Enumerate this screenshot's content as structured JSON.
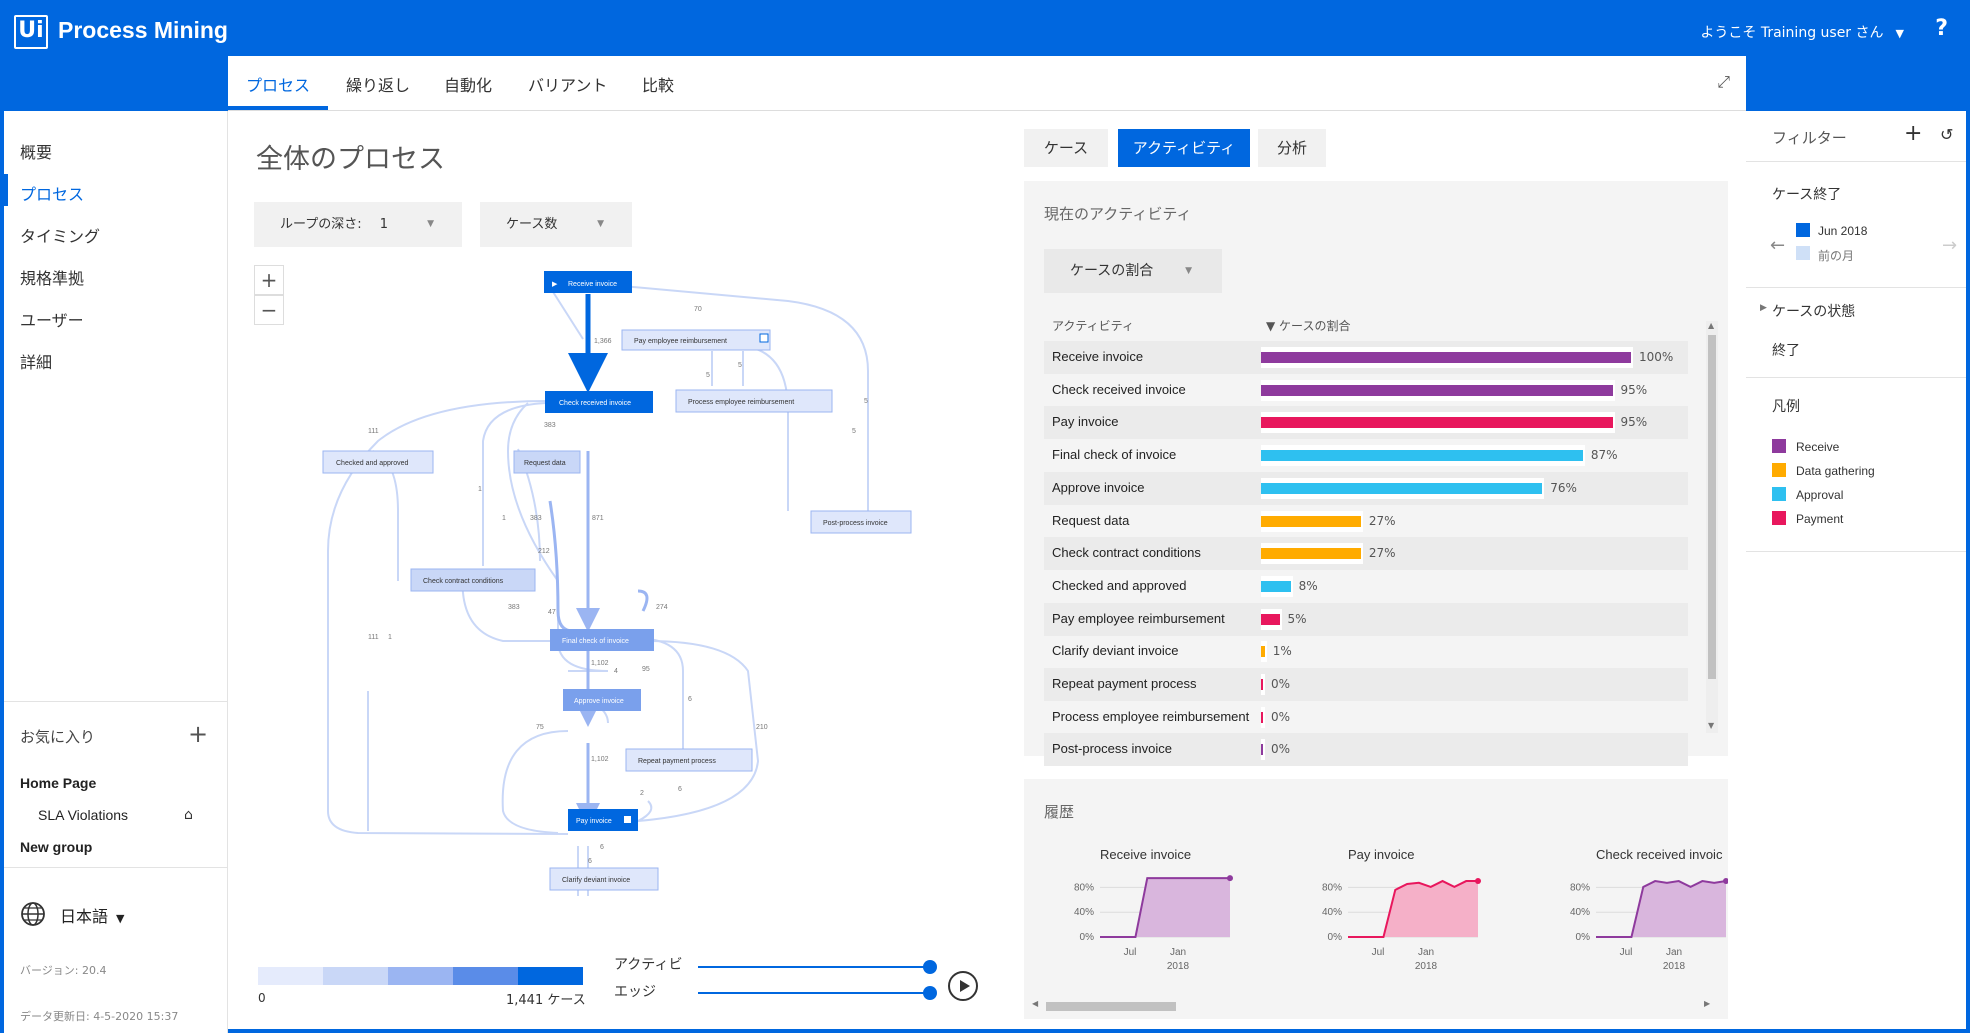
{
  "app": {
    "logo_text": "Ui",
    "title": "Process Mining",
    "welcome": "ようこそ Training user さん",
    "help": "?"
  },
  "sidebar": {
    "items": [
      {
        "label": "概要"
      },
      {
        "label": "プロセス"
      },
      {
        "label": "タイミング"
      },
      {
        "label": "規格準拠"
      },
      {
        "label": "ユーザー"
      },
      {
        "label": "詳細"
      }
    ],
    "favorites_label": "お気に入り",
    "favorites": [
      {
        "label": "Home Page"
      },
      {
        "label": "SLA Violations"
      },
      {
        "label": "New group"
      }
    ],
    "language": "日本語",
    "version": "バージョン: 20.4",
    "data_updated": "データ更新日: 4-5-2020 15:37"
  },
  "tabs": [
    {
      "label": "プロセス"
    },
    {
      "label": "繰り返し"
    },
    {
      "label": "自動化"
    },
    {
      "label": "バリアント"
    },
    {
      "label": "比較"
    }
  ],
  "process": {
    "title": "全体のプロセス",
    "loop_depth_label": "ループの深さ:",
    "loop_depth_value": "1",
    "metric_select": "ケース数",
    "zoom_in": "+",
    "zoom_out": "−",
    "nodes": {
      "receive": "Receive invoice",
      "pay_emp": "Pay employee reimbursement",
      "check_recv": "Check received invoice",
      "proc_emp": "Process employee reimbursement",
      "checked_appr": "Checked and approved",
      "request": "Request data",
      "post": "Post-process invoice",
      "contract": "Check contract conditions",
      "final": "Final check of invoice",
      "approve": "Approve invoice",
      "repeat": "Repeat payment process",
      "pay": "Pay invoice",
      "clarify": "Clarify deviant invoice"
    },
    "edge_labels": {
      "e1": "1,366",
      "e2": "70",
      "e3": "5",
      "e4": "5",
      "e5": "5",
      "e6": "5",
      "e7": "111",
      "e8": "383",
      "e9": "1",
      "e10": "1",
      "e11": "383",
      "e12": "871",
      "e13": "212",
      "e14": "383",
      "e15": "47",
      "e16": "274",
      "e17": "111",
      "e18": "1",
      "e19": "1,102",
      "e20": "4",
      "e21": "95",
      "e22": "6",
      "e23": "75",
      "e24": "210",
      "e25": "1,102",
      "e26": "2",
      "e27": "6",
      "e28": "6",
      "e29": "6"
    },
    "legend_min": "0",
    "legend_max": "1,441 ケース",
    "slider_activities": "アクティビ",
    "slider_edges": "エッジ"
  },
  "right": {
    "tabs": [
      {
        "label": "ケース"
      },
      {
        "label": "アクティビティ"
      },
      {
        "label": "分析"
      }
    ],
    "current_title": "現在のアクティビティ",
    "case_share_select": "ケースの割合",
    "col_activity": "アクティビティ",
    "col_share": "▼ ケースの割合",
    "activities": [
      {
        "name": "Receive invoice",
        "pct": 100,
        "label": "100%",
        "color": "#8e3a9d"
      },
      {
        "name": "Check received invoice",
        "pct": 95,
        "label": "95%",
        "color": "#8e3a9d"
      },
      {
        "name": "Pay invoice",
        "pct": 95,
        "label": "95%",
        "color": "#e8175d"
      },
      {
        "name": "Final check of invoice",
        "pct": 87,
        "label": "87%",
        "color": "#2ec0f0"
      },
      {
        "name": "Approve invoice",
        "pct": 76,
        "label": "76%",
        "color": "#2ec0f0"
      },
      {
        "name": "Request data",
        "pct": 27,
        "label": "27%",
        "color": "#ffab00"
      },
      {
        "name": "Check contract conditions",
        "pct": 27,
        "label": "27%",
        "color": "#ffab00"
      },
      {
        "name": "Checked and approved",
        "pct": 8,
        "label": "8%",
        "color": "#2ec0f0"
      },
      {
        "name": "Pay employee reimbursement",
        "pct": 5,
        "label": "5%",
        "color": "#e8175d"
      },
      {
        "name": "Clarify deviant invoice",
        "pct": 1,
        "label": "1%",
        "color": "#ffab00"
      },
      {
        "name": "Repeat payment process",
        "pct": 0,
        "label": "0%",
        "color": "#e8175d"
      },
      {
        "name": "Process employee reimbursement",
        "pct": 0,
        "label": "0%",
        "color": "#e8175d"
      },
      {
        "name": "Post-process invoice",
        "pct": 0,
        "label": "0%",
        "color": "#8e3a9d"
      }
    ],
    "history_title": "履歴",
    "history": [
      {
        "title": "Receive invoice",
        "color": "#8e3a9d",
        "fill": "#d9b6dd",
        "values": [
          0,
          0,
          0,
          0,
          100,
          100,
          100,
          100,
          100,
          100,
          100,
          100
        ]
      },
      {
        "title": "Pay invoice",
        "color": "#e8175d",
        "fill": "#f5b0c8",
        "values": [
          0,
          0,
          0,
          0,
          80,
          90,
          92,
          85,
          95,
          85,
          95,
          95
        ]
      },
      {
        "title": "Check received invoic",
        "color": "#8e3a9d",
        "fill": "#d9b6dd",
        "values": [
          0,
          0,
          0,
          0,
          85,
          95,
          92,
          95,
          85,
          95,
          92,
          95
        ]
      }
    ],
    "history_axis": {
      "y_ticks": [
        "80%",
        "40%",
        "0%"
      ],
      "x_ticks": [
        "Jul",
        "Jan"
      ],
      "x_year": "2018"
    }
  },
  "filters": {
    "title": "フィルター",
    "case_end": "ケース終了",
    "period_current": "Jun 2018",
    "period_prev": "前の月",
    "case_status": "ケースの状態",
    "status_value": "終了",
    "legend_title": "凡例",
    "legend": [
      {
        "label": "Receive",
        "color": "#8e3a9d"
      },
      {
        "label": "Data gathering",
        "color": "#ffab00"
      },
      {
        "label": "Approval",
        "color": "#2ec0f0"
      },
      {
        "label": "Payment",
        "color": "#e8175d"
      }
    ]
  }
}
